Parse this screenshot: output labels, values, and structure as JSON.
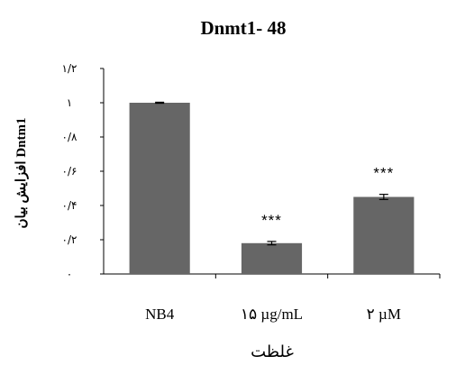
{
  "chart_data": {
    "type": "bar",
    "title": "Dnmt1- 48",
    "ylabel": "افزایش بیان Dntm1",
    "xlabel": "غلظت",
    "categories": [
      "NB4",
      "۱۵ µg/mL",
      "۲ µM"
    ],
    "values": [
      1.0,
      0.18,
      0.45
    ],
    "errors": [
      0.003,
      0.01,
      0.015
    ],
    "significance": [
      "",
      "***",
      "***"
    ],
    "ylim": [
      0,
      1.2
    ],
    "yticks": [
      0,
      0.2,
      0.4,
      0.6,
      0.8,
      1,
      1.2
    ],
    "ytick_labels": [
      "۰",
      "۰/۲",
      "۰/۴",
      "۰/۶",
      "۰/۸",
      "۱",
      "۱/۲"
    ],
    "grid": false,
    "legend": "none",
    "bar_color": "#666666"
  }
}
